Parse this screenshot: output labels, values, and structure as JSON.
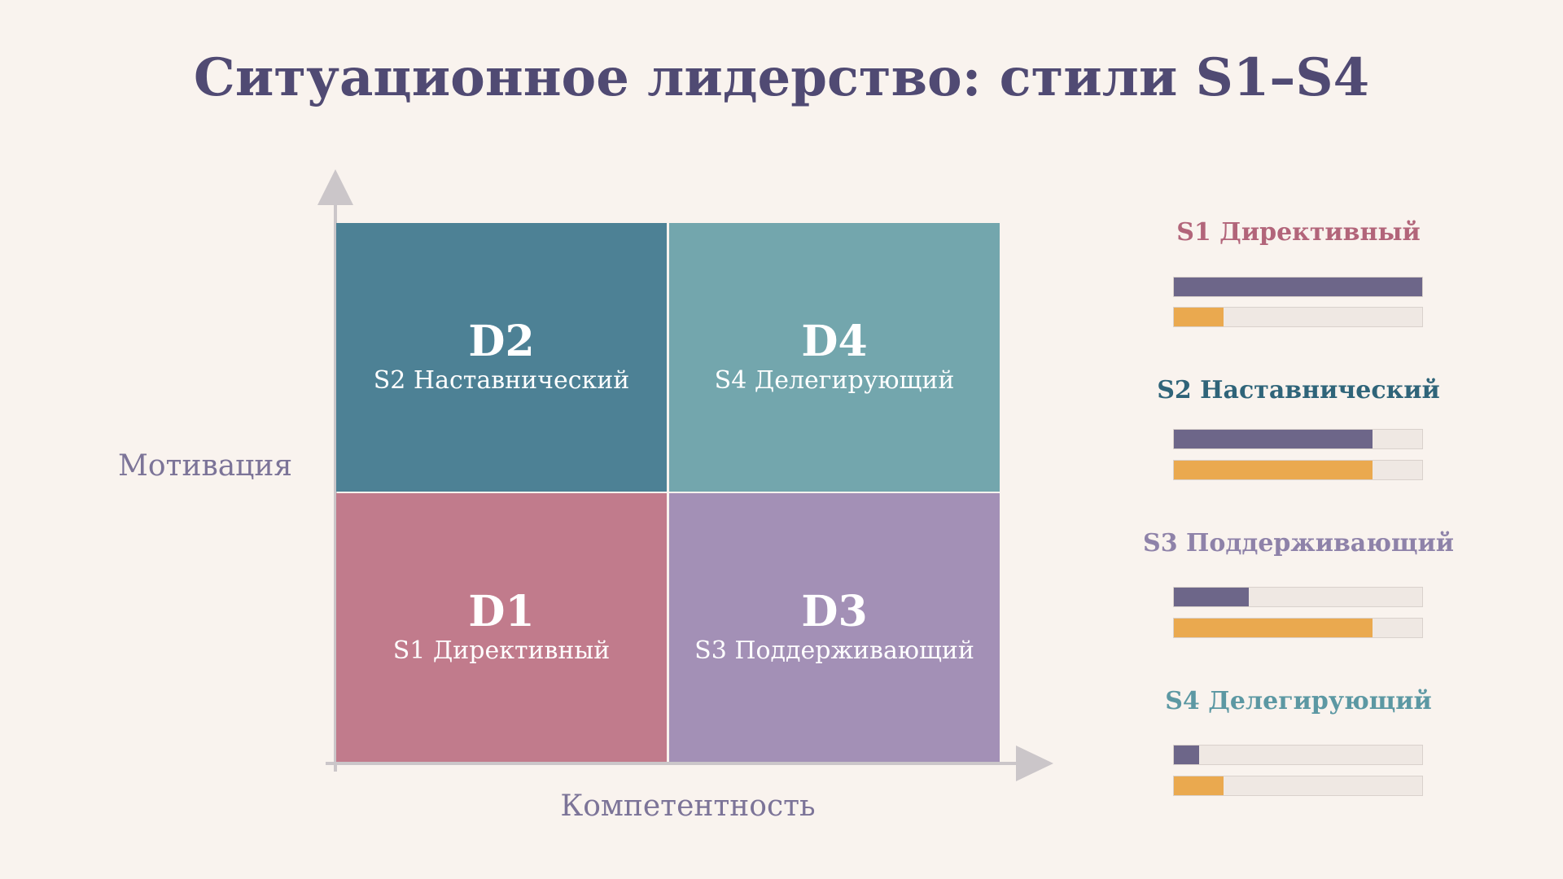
{
  "title": "Ситуационное лидерство: стили S1–S4",
  "axes": {
    "y_label": "Мотивация",
    "x_label": "Компетентность"
  },
  "quadrants": {
    "d2": {
      "code": "D2",
      "style": "S2 Наставнический",
      "color": "#4d8195"
    },
    "d4": {
      "code": "D4",
      "style": "S4 Делегирующий",
      "color": "#73a6ad"
    },
    "d1": {
      "code": "D1",
      "style": "S1 Директивный",
      "color": "#c17b8c"
    },
    "d3": {
      "code": "D3",
      "style": "S3 Поддерживающий",
      "color": "#a390b6"
    }
  },
  "legend": [
    {
      "title": "S1 Директивный",
      "color": "#b2657a",
      "directive": 1.0,
      "support": 0.2
    },
    {
      "title": "S2 Наставнический",
      "color": "#2f6479",
      "directive": 0.8,
      "support": 0.8
    },
    {
      "title": "S3 Поддерживающий",
      "color": "#8e82a9",
      "directive": 0.3,
      "support": 0.8
    },
    {
      "title": "S4 Делегирующий",
      "color": "#5c98a3",
      "directive": 0.1,
      "support": 0.2
    }
  ],
  "colors": {
    "directive_bar": "#6d6689",
    "support_bar": "#eaa94f",
    "title": "#504a73",
    "axis": "#cbc6c9"
  }
}
